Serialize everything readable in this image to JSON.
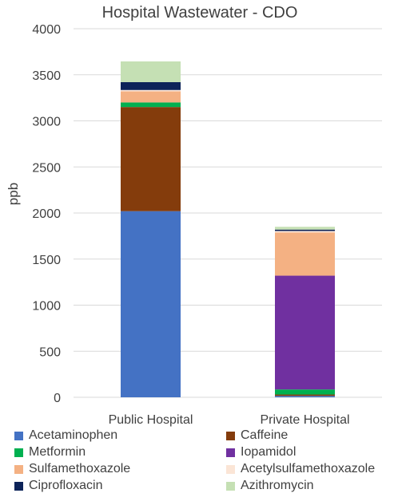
{
  "chart_data": {
    "type": "bar",
    "stacked": true,
    "title": "Hospital Wastewater - CDO",
    "xlabel": "",
    "ylabel": "ppb",
    "ylim": [
      0,
      4000
    ],
    "yticks": [
      "0",
      "500",
      "1000",
      "1500",
      "2000",
      "2500",
      "3000",
      "3500",
      "4000"
    ],
    "grid": true,
    "legend_position": "bottom",
    "categories": [
      "Public Hospital",
      "Private Hospital"
    ],
    "series": [
      {
        "name": "Acetaminophen",
        "color": "#4472c4",
        "values": [
          2020,
          15
        ]
      },
      {
        "name": "Caffeine",
        "color": "#843c0c",
        "values": [
          1130,
          15
        ]
      },
      {
        "name": "Metformin",
        "color": "#00b050",
        "values": [
          50,
          55
        ]
      },
      {
        "name": "Iopamidol",
        "color": "#7030a0",
        "values": [
          0,
          1235
        ]
      },
      {
        "name": "Sulfamethoxazole",
        "color": "#f4b183",
        "values": [
          120,
          470
        ]
      },
      {
        "name": "Acetylsulfamethoxazole",
        "color": "#fbe5d6",
        "values": [
          15,
          15
        ]
      },
      {
        "name": "Ciprofloxacin",
        "color": "#0d2359",
        "values": [
          85,
          15
        ]
      },
      {
        "name": "Azithromycin",
        "color": "#c5e0b4",
        "values": [
          225,
          30
        ]
      }
    ]
  }
}
